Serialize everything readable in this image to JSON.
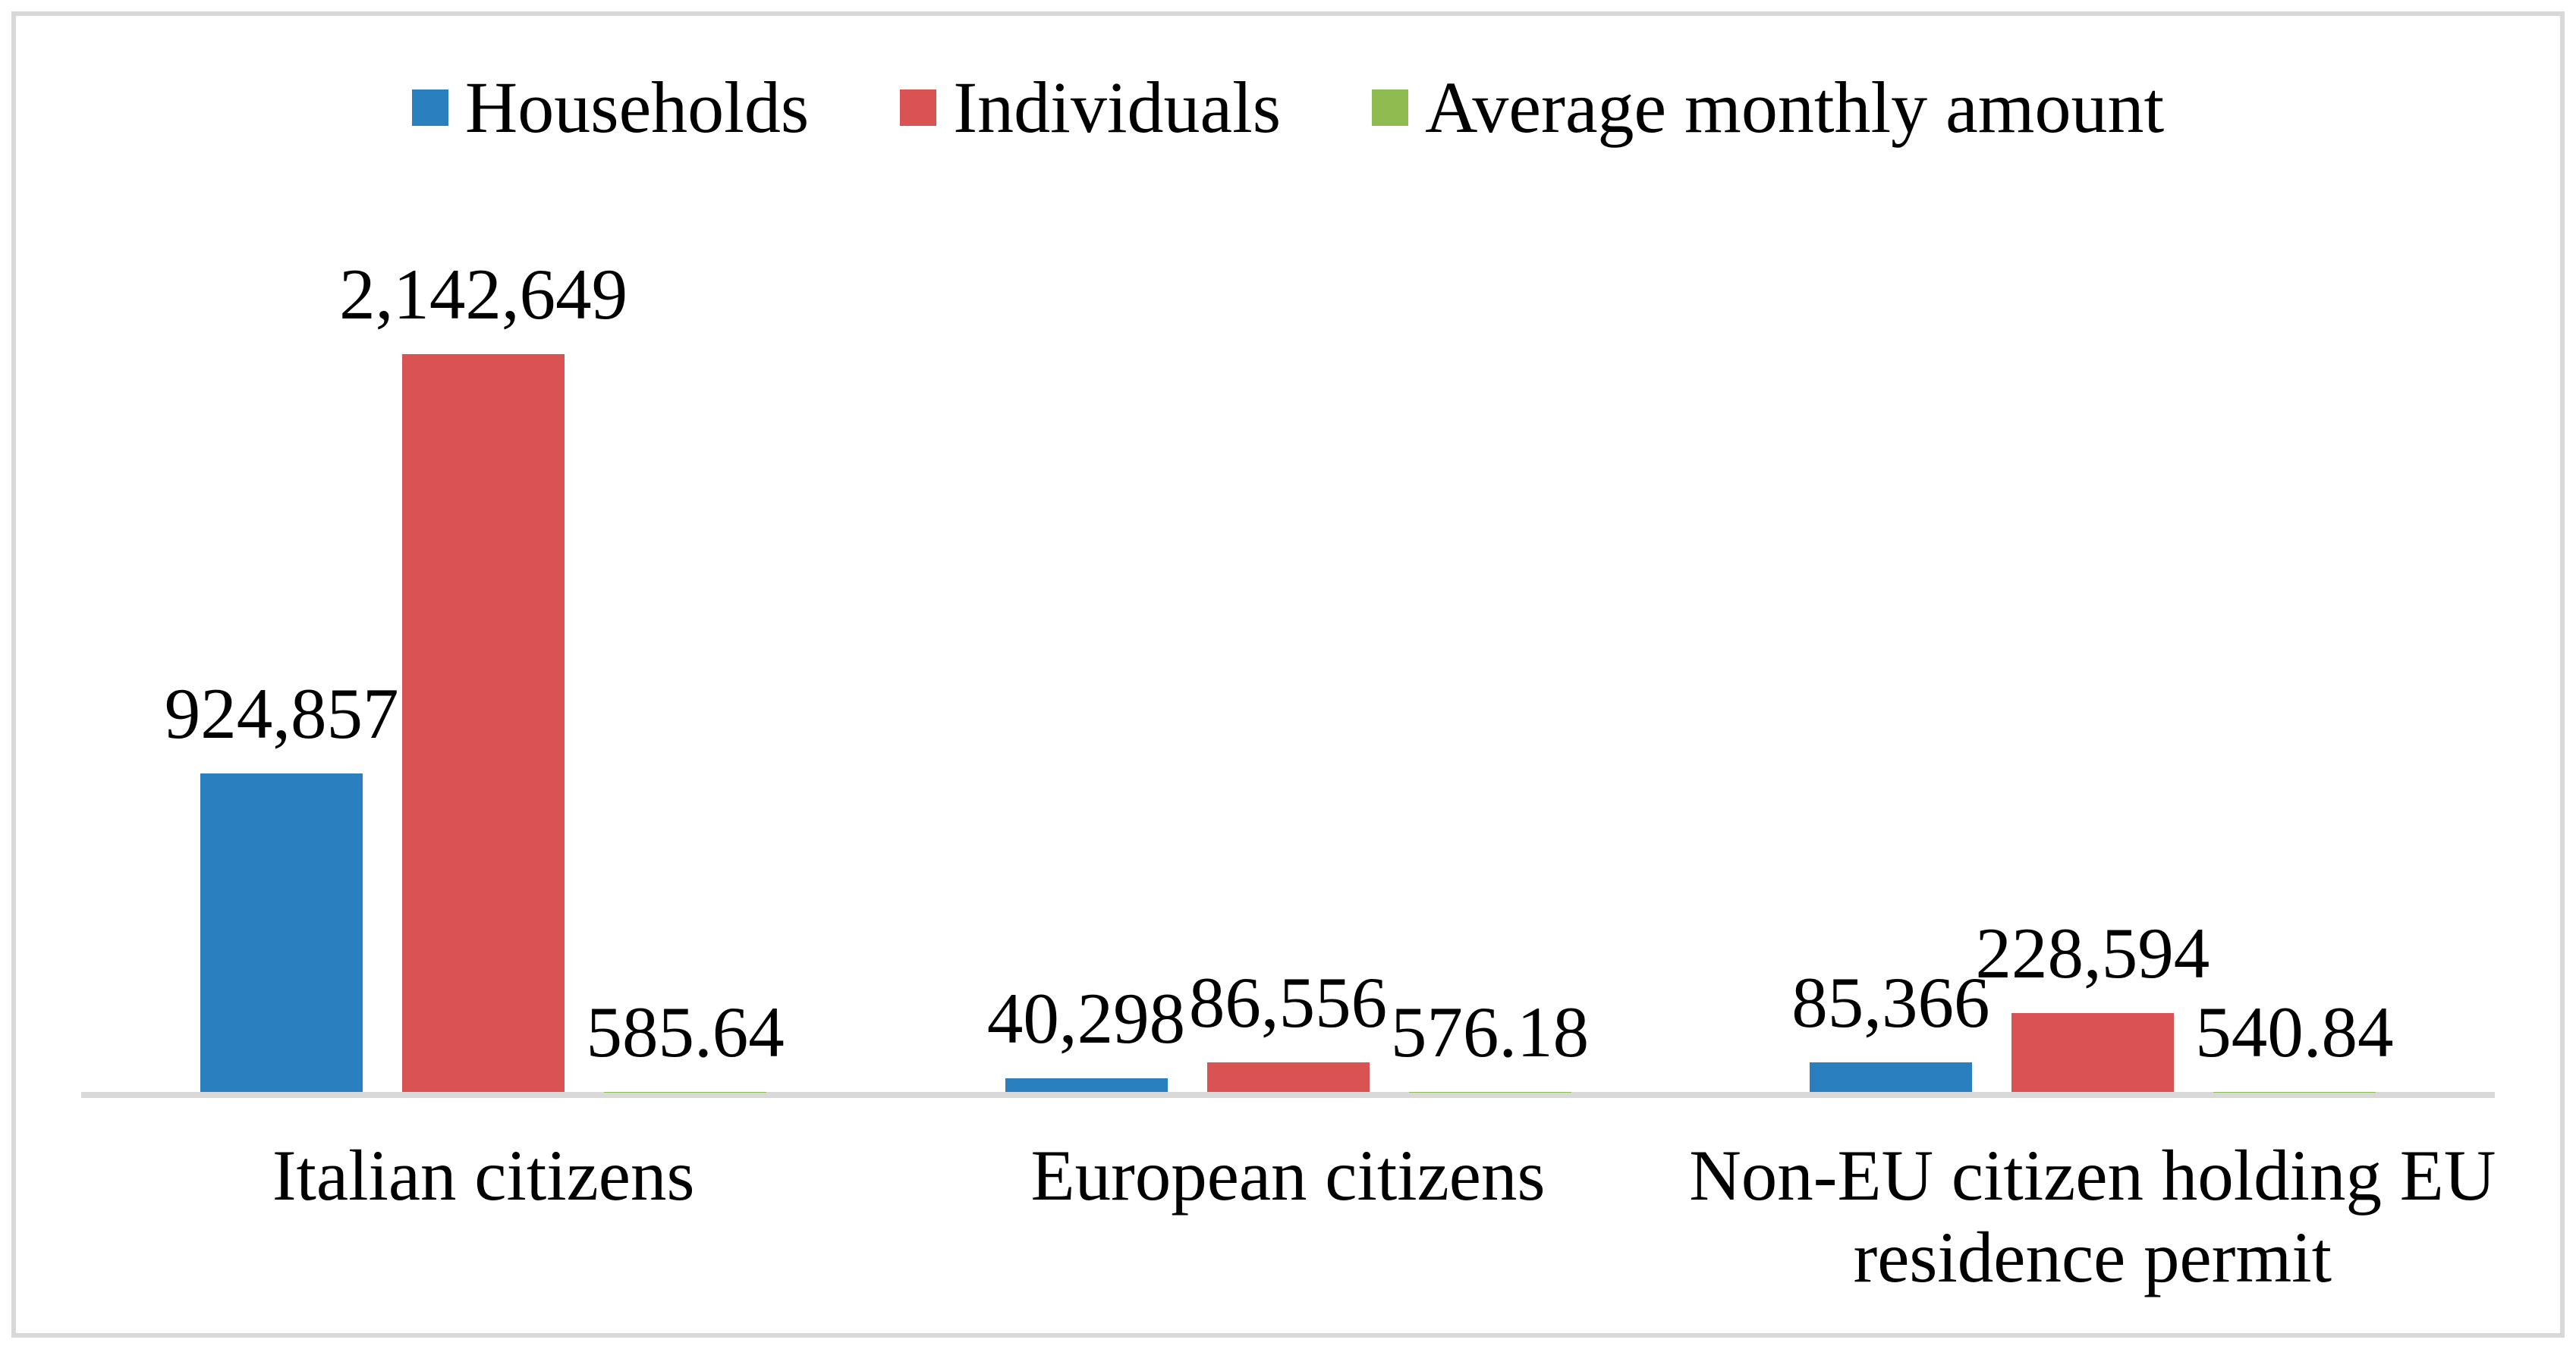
{
  "figure": {
    "background_color": "#ffffff",
    "border_color": "#d8d8d8"
  },
  "legend": {
    "position": "top",
    "items": [
      {
        "label": "Households",
        "color": "#2a80be"
      },
      {
        "label": "Individuals",
        "color": "#d95353"
      },
      {
        "label": "Average monthly amount",
        "color": "#8ebc51"
      }
    ]
  },
  "chart_data": {
    "type": "bar",
    "title": "",
    "xlabel": "",
    "ylabel": "",
    "categories": [
      "Italian citizens",
      "European citizens",
      "Non-EU citizen holding EU residence permit"
    ],
    "series": [
      {
        "name": "Households",
        "color": "#2a80be",
        "values": [
          924857,
          40298,
          85366
        ],
        "data_labels": [
          "924,857",
          "40,298",
          "85,366"
        ]
      },
      {
        "name": "Individuals",
        "color": "#d95353",
        "values": [
          2142649,
          86556,
          228594
        ],
        "data_labels": [
          "2,142,649",
          "86,556",
          "228,594"
        ]
      },
      {
        "name": "Average monthly amount",
        "color": "#8ebc51",
        "values": [
          585.64,
          576.18,
          540.84
        ],
        "data_labels": [
          "585.64",
          "576.18",
          "540.84"
        ]
      }
    ],
    "ylim": [
      0,
      2142649
    ],
    "y_axis_visible": false,
    "x_axis_line_color": "#d9d9d9",
    "grid": false,
    "legend_position": "top",
    "data_label_position": "outside-end",
    "text_color": "#000000"
  }
}
